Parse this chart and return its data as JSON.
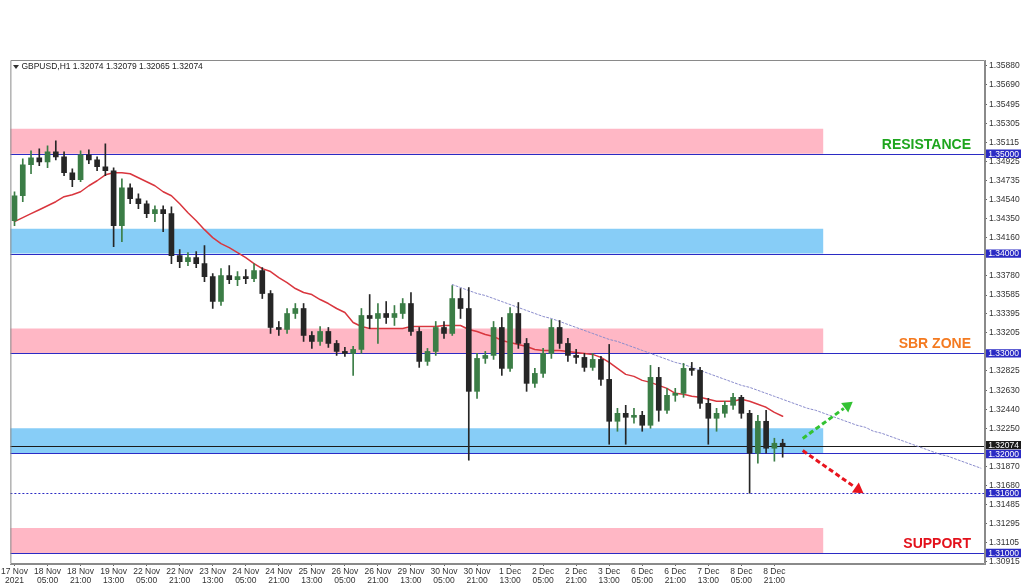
{
  "chart_data": {
    "type": "candlestick",
    "title": "GBPUSD,H1 1.32074 1.32079 1.32065 1.32074",
    "categories": [
      "17 Nov 2021",
      null,
      null,
      null,
      "18 Nov 05:00",
      null,
      null,
      null,
      "18 Nov 21:00",
      null,
      null,
      null,
      "19 Nov 13:00",
      null,
      null,
      null,
      "22 Nov 05:00",
      null,
      null,
      null,
      "22 Nov 21:00",
      null,
      null,
      null,
      "23 Nov 13:00",
      null,
      null,
      null,
      "24 Nov 05:00",
      null,
      null,
      null,
      "24 Nov 21:00",
      null,
      null,
      null,
      "25 Nov 13:00",
      null,
      null,
      null,
      "26 Nov 05:00",
      null,
      null,
      null,
      "26 Nov 21:00",
      null,
      null,
      null,
      "29 Nov 13:00",
      null,
      null,
      null,
      "30 Nov 05:00",
      null,
      null,
      null,
      "30 Nov 21:00",
      null,
      null,
      null,
      "1 Dec 13:00",
      null,
      null,
      null,
      "2 Dec 05:00",
      null,
      null,
      null,
      "2 Dec 21:00",
      null,
      null,
      null,
      "3 Dec 13:00",
      null,
      null,
      null,
      "6 Dec 05:00",
      null,
      null,
      null,
      "6 Dec 21:00",
      null,
      null,
      null,
      "7 Dec 13:00",
      null,
      null,
      null,
      "8 Dec 05:00",
      null,
      null,
      null,
      "8 Dec 21:00",
      null,
      null,
      null,
      null,
      null,
      null,
      null,
      null,
      null,
      null,
      null,
      null,
      null,
      null,
      null,
      null,
      null,
      null,
      null,
      null,
      null,
      null,
      null,
      null,
      null
    ],
    "ohlc": [
      [
        1.3433,
        1.3462,
        1.3428,
        1.3458
      ],
      [
        1.3458,
        1.3495,
        1.3452,
        1.3489
      ],
      [
        1.3489,
        1.3503,
        1.348,
        1.3496
      ],
      [
        1.3496,
        1.3505,
        1.3488,
        1.3492
      ],
      [
        1.3492,
        1.3508,
        1.3486,
        1.3502
      ],
      [
        1.3502,
        1.3513,
        1.3494,
        1.3497
      ],
      [
        1.3497,
        1.3502,
        1.3478,
        1.3481
      ],
      [
        1.3481,
        1.3485,
        1.3467,
        1.3474
      ],
      [
        1.3474,
        1.3503,
        1.3472,
        1.3499
      ],
      [
        1.3499,
        1.3504,
        1.349,
        1.3494
      ],
      [
        1.3494,
        1.3497,
        1.3483,
        1.3487
      ],
      [
        1.3487,
        1.351,
        1.3478,
        1.3483
      ],
      [
        1.3483,
        1.3486,
        1.3407,
        1.3428
      ],
      [
        1.3428,
        1.3475,
        1.3412,
        1.3466
      ],
      [
        1.3466,
        1.347,
        1.345,
        1.3455
      ],
      [
        1.3455,
        1.346,
        1.3445,
        1.345
      ],
      [
        1.345,
        1.3453,
        1.3436,
        1.344
      ],
      [
        1.344,
        1.3448,
        1.3432,
        1.3444
      ],
      [
        1.3444,
        1.3448,
        1.3422,
        1.344
      ],
      [
        1.344,
        1.3447,
        1.339,
        1.3398
      ],
      [
        1.3398,
        1.3404,
        1.3386,
        1.3392
      ],
      [
        1.3392,
        1.3401,
        1.3388,
        1.3396
      ],
      [
        1.3396,
        1.3402,
        1.3386,
        1.339
      ],
      [
        1.339,
        1.3408,
        1.3372,
        1.3377
      ],
      [
        1.3377,
        1.338,
        1.3345,
        1.3352
      ],
      [
        1.3352,
        1.3385,
        1.3348,
        1.3378
      ],
      [
        1.3378,
        1.3388,
        1.337,
        1.3374
      ],
      [
        1.3374,
        1.3382,
        1.3368,
        1.3377
      ],
      [
        1.3377,
        1.3384,
        1.337,
        1.3375
      ],
      [
        1.3375,
        1.339,
        1.3372,
        1.3383
      ],
      [
        1.3383,
        1.3386,
        1.3355,
        1.336
      ],
      [
        1.336,
        1.3363,
        1.332,
        1.3326
      ],
      [
        1.3326,
        1.3332,
        1.3318,
        1.3324
      ],
      [
        1.3324,
        1.3345,
        1.332,
        1.334
      ],
      [
        1.334,
        1.335,
        1.3335,
        1.3345
      ],
      [
        1.3345,
        1.335,
        1.3312,
        1.3318
      ],
      [
        1.3318,
        1.3322,
        1.3305,
        1.3312
      ],
      [
        1.3312,
        1.3327,
        1.3308,
        1.3322
      ],
      [
        1.3322,
        1.3326,
        1.3306,
        1.331
      ],
      [
        1.331,
        1.3313,
        1.3298,
        1.3302
      ],
      [
        1.3302,
        1.3306,
        1.3297,
        1.33
      ],
      [
        1.33,
        1.3307,
        1.3278,
        1.3304
      ],
      [
        1.3304,
        1.3345,
        1.33,
        1.3338
      ],
      [
        1.3338,
        1.3359,
        1.3325,
        1.3335
      ],
      [
        1.3335,
        1.335,
        1.331,
        1.334
      ],
      [
        1.334,
        1.3352,
        1.333,
        1.3336
      ],
      [
        1.3336,
        1.3348,
        1.3328,
        1.334
      ],
      [
        1.334,
        1.3355,
        1.3335,
        1.335
      ],
      [
        1.335,
        1.3361,
        1.3318,
        1.3322
      ],
      [
        1.3322,
        1.3326,
        1.3286,
        1.3292
      ],
      [
        1.3292,
        1.3305,
        1.3288,
        1.3302
      ],
      [
        1.3302,
        1.3332,
        1.3298,
        1.3326
      ],
      [
        1.3326,
        1.3332,
        1.3315,
        1.332
      ],
      [
        1.332,
        1.3368,
        1.3318,
        1.3355
      ],
      [
        1.3355,
        1.3365,
        1.3335,
        1.3345
      ],
      [
        1.3345,
        1.3366,
        1.3193,
        1.3262
      ],
      [
        1.3262,
        1.33,
        1.3255,
        1.3295
      ],
      [
        1.3295,
        1.3302,
        1.329,
        1.3298
      ],
      [
        1.3298,
        1.3332,
        1.3294,
        1.3326
      ],
      [
        1.3326,
        1.3336,
        1.3278,
        1.3285
      ],
      [
        1.3285,
        1.3346,
        1.3282,
        1.334
      ],
      [
        1.334,
        1.3351,
        1.3305,
        1.331
      ],
      [
        1.331,
        1.3315,
        1.3262,
        1.327
      ],
      [
        1.327,
        1.3285,
        1.3266,
        1.328
      ],
      [
        1.328,
        1.3305,
        1.3276,
        1.33
      ],
      [
        1.33,
        1.3334,
        1.3295,
        1.3326
      ],
      [
        1.3326,
        1.3333,
        1.3305,
        1.331
      ],
      [
        1.331,
        1.3315,
        1.3292,
        1.3298
      ],
      [
        1.3298,
        1.3304,
        1.329,
        1.3296
      ],
      [
        1.3296,
        1.33,
        1.3282,
        1.3286
      ],
      [
        1.3286,
        1.33,
        1.3283,
        1.3294
      ],
      [
        1.3294,
        1.3297,
        1.3268,
        1.3274
      ],
      [
        1.3274,
        1.3309,
        1.3209,
        1.3232
      ],
      [
        1.3232,
        1.3245,
        1.3222,
        1.324
      ],
      [
        1.324,
        1.3248,
        1.3209,
        1.3236
      ],
      [
        1.3236,
        1.3245,
        1.323,
        1.3238
      ],
      [
        1.3238,
        1.3242,
        1.3222,
        1.3228
      ],
      [
        1.3228,
        1.3288,
        1.3225,
        1.3276
      ],
      [
        1.3276,
        1.3286,
        1.3232,
        1.3243
      ],
      [
        1.3243,
        1.3265,
        1.324,
        1.3258
      ],
      [
        1.3258,
        1.3265,
        1.3252,
        1.326
      ],
      [
        1.326,
        1.329,
        1.3256,
        1.3285
      ],
      [
        1.3285,
        1.3291,
        1.3278,
        1.3283
      ],
      [
        1.3283,
        1.3286,
        1.3245,
        1.325
      ],
      [
        1.325,
        1.3255,
        1.3209,
        1.3235
      ],
      [
        1.3235,
        1.3245,
        1.3222,
        1.324
      ],
      [
        1.324,
        1.3252,
        1.3236,
        1.3248
      ],
      [
        1.3248,
        1.326,
        1.3244,
        1.3256
      ],
      [
        1.3256,
        1.3258,
        1.3235,
        1.324
      ],
      [
        1.324,
        1.3243,
        1.316,
        1.32
      ],
      [
        1.32,
        1.3238,
        1.319,
        1.3232
      ],
      [
        1.3232,
        1.3243,
        1.32,
        1.3205
      ],
      [
        1.3205,
        1.3215,
        1.3192,
        1.321
      ],
      [
        1.321,
        1.3214,
        1.3196,
        1.32074
      ],
      null,
      null,
      null,
      null,
      null,
      null,
      null,
      null,
      null,
      null,
      null,
      null,
      null,
      null,
      null,
      null,
      null,
      null,
      null,
      null,
      null,
      null,
      null,
      null
    ],
    "colors": [
      "#3b7d46",
      "#3b7d46",
      "#3b7d46",
      "#262626",
      "#3b7d46",
      "#262626",
      "#262626",
      "#262626",
      "#3b7d46",
      "#262626",
      "#262626",
      "#262626",
      "#262626",
      "#3b7d46",
      "#262626",
      "#262626",
      "#262626",
      "#3b7d46",
      "#262626",
      "#262626",
      "#262626",
      "#3b7d46",
      "#262626",
      "#262626",
      "#262626",
      "#3b7d46",
      "#262626",
      "#3b7d46",
      "#262626",
      "#3b7d46",
      "#262626",
      "#262626",
      "#262626",
      "#3b7d46",
      "#3b7d46",
      "#262626",
      "#262626",
      "#3b7d46",
      "#262626",
      "#262626",
      "#262626",
      "#3b7d46",
      "#3b7d46",
      "#262626",
      "#3b7d46",
      "#262626",
      "#3b7d46",
      "#3b7d46",
      "#262626",
      "#262626",
      "#3b7d46",
      "#3b7d46",
      "#262626",
      "#3b7d46",
      "#262626",
      "#262626",
      "#3b7d46",
      "#3b7d46",
      "#3b7d46",
      "#262626",
      "#3b7d46",
      "#262626",
      "#262626",
      "#3b7d46",
      "#3b7d46",
      "#3b7d46",
      "#262626",
      "#262626",
      "#262626",
      "#262626",
      "#3b7d46",
      "#262626",
      "#262626",
      "#3b7d46",
      "#262626",
      "#3b7d46",
      "#262626",
      "#3b7d46",
      "#262626",
      "#3b7d46",
      "#3b7d46",
      "#3b7d46",
      "#262626",
      "#262626",
      "#262626",
      "#3b7d46",
      "#3b7d46",
      "#3b7d46",
      "#262626",
      "#262626",
      "#3b7d46",
      "#262626",
      "#3b7d46",
      "#262626",
      null,
      null,
      null,
      null,
      null,
      null,
      null,
      null,
      null,
      null,
      null,
      null,
      null,
      null,
      null,
      null,
      null,
      null,
      null,
      null,
      null,
      null,
      null,
      null
    ],
    "series": [
      {
        "type": "line",
        "color": "#d9363e",
        "values": [
          1.3432,
          1.3436,
          1.344,
          1.3444,
          1.3448,
          1.3452,
          1.3457,
          1.3459,
          1.3462,
          1.3468,
          1.3473,
          1.3479,
          1.3481,
          1.3481,
          1.348,
          1.3476,
          1.3472,
          1.3468,
          1.3462,
          1.3458,
          1.345,
          1.3441,
          1.3433,
          1.3424,
          1.3416,
          1.341,
          1.3406,
          1.3401,
          1.3396,
          1.339,
          1.3385,
          1.3382,
          1.3376,
          1.3371,
          1.3365,
          1.3361,
          1.3359,
          1.3354,
          1.335,
          1.3345,
          1.3341,
          1.3331,
          1.3327,
          1.3325,
          1.3325,
          1.3325,
          1.3325,
          1.3325,
          1.3327,
          1.3327,
          1.3327,
          1.3327,
          1.3328,
          1.3328,
          1.3328,
          1.3324,
          1.3322,
          1.3319,
          1.3317,
          1.3313,
          1.3311,
          1.3309,
          1.3307,
          1.3304,
          1.3303,
          1.3303,
          1.3303,
          1.3302,
          1.3301,
          1.33,
          1.3299,
          1.3296,
          1.3291,
          1.3285,
          1.3279,
          1.3277,
          1.3273,
          1.3271,
          1.3268,
          1.3265,
          1.326,
          1.3259,
          1.3257,
          1.3256,
          1.3254,
          1.3252,
          1.3252,
          1.3252,
          1.3254,
          1.3252,
          1.3249,
          1.3246,
          1.3241,
          1.3237,
          null,
          null,
          null,
          null,
          null,
          null,
          null,
          null,
          null,
          null,
          null,
          null,
          null,
          null,
          null,
          null,
          null,
          null,
          null,
          null,
          null,
          null,
          null,
          null
        ]
      },
      {
        "type": "line",
        "color": "#8a8ccc",
        "line_style": "dotted",
        "values": [
          null,
          null,
          null,
          null,
          null,
          null,
          null,
          null,
          null,
          null,
          null,
          null,
          null,
          null,
          null,
          null,
          null,
          null,
          null,
          null,
          null,
          null,
          null,
          null,
          null,
          null,
          null,
          null,
          null,
          null,
          null,
          null,
          null,
          null,
          null,
          null,
          null,
          null,
          null,
          null,
          null,
          null,
          null,
          null,
          null,
          null,
          null,
          null,
          null,
          null,
          null,
          null,
          null,
          1.3369,
          1.3366,
          1.3363,
          1.336,
          1.3358,
          1.3355,
          1.3352,
          1.3349,
          1.3346,
          1.3343,
          1.334,
          1.3337,
          1.3335,
          1.3332,
          1.3329,
          1.3326,
          1.3323,
          1.332,
          1.3317,
          1.3314,
          1.3312,
          1.3309,
          1.3306,
          1.3303,
          1.33,
          1.3297,
          1.3294,
          1.3291,
          1.3289,
          1.3286,
          1.3283,
          1.328,
          1.3277,
          1.3274,
          1.3271,
          1.3268,
          1.3266,
          1.3263,
          1.326,
          1.3257,
          1.3254,
          1.3251,
          1.3248,
          1.3245,
          1.3243,
          1.324,
          1.3237,
          1.3234,
          1.3231,
          1.3228,
          1.3226,
          1.3222,
          1.322,
          1.3217,
          1.3214,
          1.3211,
          1.3208,
          1.3205,
          1.3202,
          1.3199,
          1.3197,
          1.3194,
          1.3191,
          1.3188,
          1.3185
        ]
      }
    ],
    "ylim": [
      1.3089,
      1.3594
    ],
    "yticks": [
      {
        "value": 1.3588,
        "label": "1.35880"
      },
      {
        "value": 1.3569,
        "label": "1.35690"
      },
      1.35495,
      1.35305,
      1.35115,
      1.34925,
      1.34735,
      {
        "value": 1.3454,
        "label": "1.34540"
      },
      {
        "value": 1.3435,
        "label": "1.34350"
      },
      {
        "value": 1.3416,
        "label": "1.34160"
      },
      {
        "value": 1.3378,
        "label": "1.33780"
      },
      1.33585,
      1.33395,
      1.33205,
      1.32825,
      {
        "value": 1.3263,
        "label": "1.32630"
      },
      {
        "value": 1.3244,
        "label": "1.32440"
      },
      {
        "value": 1.3225,
        "label": "1.32250"
      },
      {
        "value": 1.3187,
        "label": "1.31870"
      },
      {
        "value": 1.3168,
        "label": "1.31680"
      },
      1.31485,
      1.31295,
      1.31105,
      1.30915
    ],
    "ref_lines": [
      {
        "axis": "y",
        "value": 1.35,
        "label": "1.35000",
        "color": "#2b2bc4"
      },
      {
        "axis": "y",
        "value": 1.34,
        "label": "1.34000",
        "color": "#2b2bc4"
      },
      {
        "axis": "y",
        "value": 1.33,
        "label": "1.33000",
        "color": "#2b2bc4"
      },
      {
        "axis": "y",
        "value": 1.32074,
        "label": "1.32074",
        "color": "#1a1a1a"
      },
      {
        "axis": "y",
        "value": 1.32,
        "label": "1.32000",
        "color": "#2b2bc4"
      },
      {
        "axis": "y",
        "value": 1.316,
        "label": "1.31600",
        "color": "#2b2bc4",
        "line_style": "dotted"
      },
      {
        "axis": "y",
        "value": 1.31,
        "label": "1.31000",
        "color": "#2b2bc4"
      }
    ],
    "bands": [
      {
        "axis": "y",
        "from": 1.35,
        "to": 1.3525,
        "color": "#ffb7c5"
      },
      {
        "axis": "y",
        "from": 1.34,
        "to": 1.3425,
        "color": "#87cdf7"
      },
      {
        "axis": "y",
        "from": 1.33,
        "to": 1.3325,
        "color": "#ffb7c5"
      },
      {
        "axis": "y",
        "from": 1.32,
        "to": 1.3225,
        "color": "#87cdf7"
      },
      {
        "axis": "y",
        "from": 1.31,
        "to": 1.3125,
        "color": "#ffb7c5"
      }
    ],
    "annotations": [
      {
        "text": "RESISTANCE",
        "y": 1.35
      },
      {
        "text": "SBR ZONE",
        "y": 1.33
      },
      {
        "text": "SUPPORT",
        "y": 1.31
      }
    ]
  }
}
